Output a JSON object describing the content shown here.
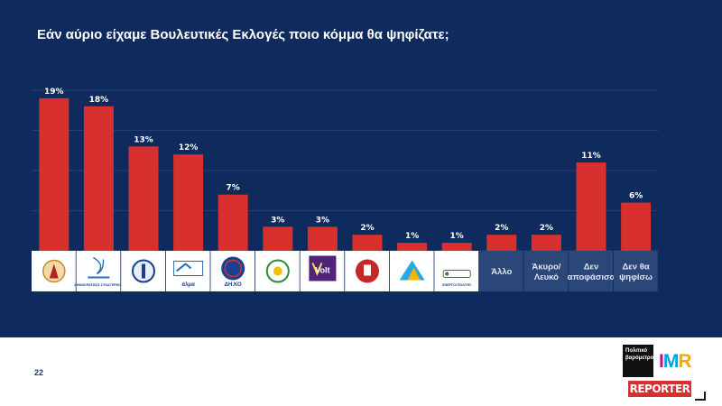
{
  "title": "Εάν αύριο είχαμε Βουλευτικές Εκλογές ποιο κόμμα θα ψηφίζατε;",
  "page_number": "22",
  "brand": {
    "partner_text": "Πολιτικό βαρόμετρο",
    "imr_i": "I",
    "imr_m": "M",
    "imr_r": "R",
    "reporter_text": "REPORTER"
  },
  "colors": {
    "panel": "#0f2a5c",
    "bar": "#d8302f",
    "logo_cell": "#ffffff",
    "text_cell": "#2b4678"
  },
  "chart_data": {
    "type": "bar",
    "title": "Εάν αύριο είχαμε Βουλευτικές Εκλογές ποιο κόμμα θα ψηφίζατε;",
    "unit": "%",
    "ylim": [
      0,
      20
    ],
    "grid": true,
    "legend": "none",
    "categories": [
      {
        "kind": "logo",
        "icon": "party-logo-1",
        "label": ""
      },
      {
        "kind": "logo",
        "icon": "party-logo-2",
        "label": "ΔΗΜΟΚΡΑΤΙΚΟΣ ΣΥΝΑΓΕΡΜΟΣ"
      },
      {
        "kind": "logo",
        "icon": "party-logo-3",
        "label": ""
      },
      {
        "kind": "logo",
        "icon": "party-logo-4",
        "label": "άλμα"
      },
      {
        "kind": "logo",
        "icon": "party-logo-5",
        "label": "ΔΗ.ΚΟ"
      },
      {
        "kind": "logo",
        "icon": "party-logo-6",
        "label": ""
      },
      {
        "kind": "logo",
        "icon": "party-logo-7",
        "label": "Volt"
      },
      {
        "kind": "logo",
        "icon": "party-logo-8",
        "label": ""
      },
      {
        "kind": "logo",
        "icon": "party-logo-9",
        "label": ""
      },
      {
        "kind": "logo",
        "icon": "party-logo-10",
        "label": "ΕΝΕΡΓΟΙ ΠΟΛΙΤΕΣ"
      },
      {
        "kind": "text",
        "label": "Άλλο"
      },
      {
        "kind": "text",
        "label": "Άκυρο/\nΛευκό"
      },
      {
        "kind": "text",
        "label": "Δεν\nαποφάσισα"
      },
      {
        "kind": "text",
        "label": "Δεν θα\nψηφίσω"
      }
    ],
    "values": [
      19,
      18,
      13,
      12,
      7,
      3,
      3,
      2,
      1,
      1,
      2,
      2,
      11,
      6
    ],
    "value_labels": [
      "19%",
      "18%",
      "13%",
      "12%",
      "7%",
      "3%",
      "3%",
      "2%",
      "1%",
      "1%",
      "2%",
      "2%",
      "11%",
      "6%"
    ]
  }
}
